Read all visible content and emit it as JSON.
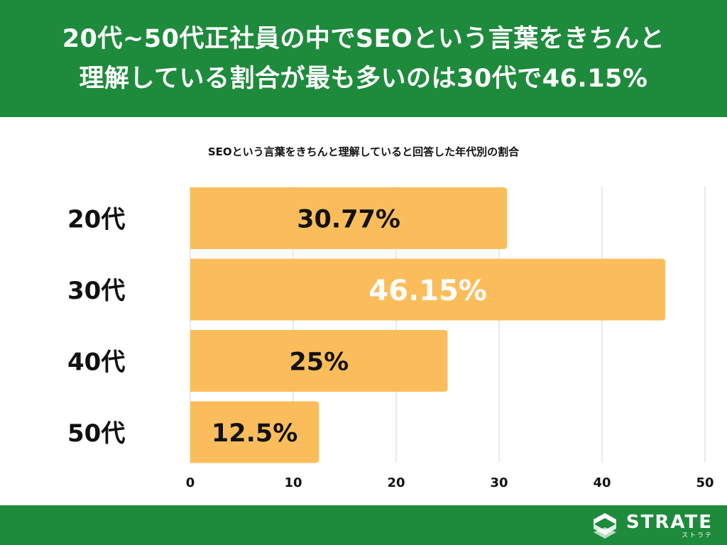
{
  "header": {
    "title_line1": "20代~50代正社員の中でSEOという言葉をきちんと",
    "title_line2": "理解している割合が最も多いのは30代で46.15%"
  },
  "chart_data": {
    "type": "bar",
    "orientation": "horizontal",
    "title": "SEOという言葉をきちんと理解していると回答した年代別の割合",
    "categories": [
      "20代",
      "30代",
      "40代",
      "50代"
    ],
    "values": [
      30.77,
      46.15,
      25,
      12.5
    ],
    "data_labels": [
      "30.77%",
      "46.15%",
      "25%",
      "12.5%"
    ],
    "highlight_index": 1,
    "xlim": [
      0,
      50
    ],
    "xticks": [
      0,
      10,
      20,
      30,
      40,
      50
    ],
    "grid": true,
    "bar_color": "#fbbd5c",
    "label_color": "#111111",
    "highlight_label_color": "#ffffff"
  },
  "footer": {
    "logo_text": "STRATE",
    "logo_sub": "ストラテ",
    "bg_color": "#1e8a3c"
  }
}
